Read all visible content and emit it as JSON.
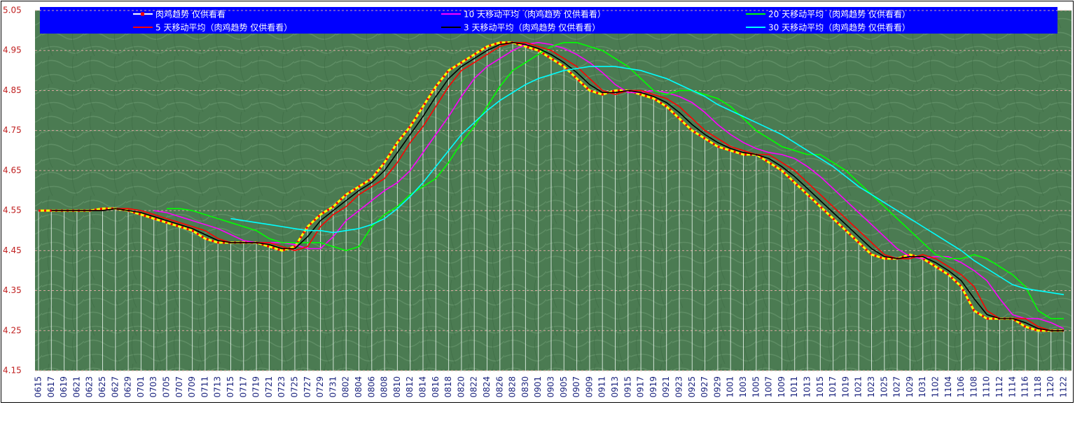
{
  "chart_data": {
    "type": "line",
    "categories": [
      "0615",
      "0617",
      "0619",
      "0621",
      "0623",
      "0625",
      "0627",
      "0629",
      "0701",
      "0703",
      "0705",
      "0707",
      "0709",
      "0711",
      "0713",
      "0715",
      "0717",
      "0719",
      "0721",
      "0723",
      "0725",
      "0727",
      "0729",
      "0731",
      "0802",
      "0804",
      "0806",
      "0808",
      "0810",
      "0812",
      "0814",
      "0816",
      "0818",
      "0820",
      "0822",
      "0824",
      "0826",
      "0828",
      "0830",
      "0901",
      "0903",
      "0905",
      "0907",
      "0909",
      "0911",
      "0913",
      "0915",
      "0917",
      "0919",
      "0921",
      "0923",
      "0925",
      "0927",
      "0929",
      "1001",
      "1003",
      "1005",
      "1007",
      "1009",
      "1011",
      "1013",
      "1015",
      "1017",
      "1019",
      "1021",
      "1023",
      "1025",
      "1027",
      "1029",
      "1031",
      "1102",
      "1104",
      "1106",
      "1108",
      "1110",
      "1112",
      "1114",
      "1116",
      "1118",
      "1120",
      "1122"
    ],
    "ylim": [
      4.15,
      5.05
    ],
    "yticks": [
      4.15,
      4.25,
      4.35,
      4.45,
      4.55,
      4.65,
      4.75,
      4.85,
      4.95,
      5.05
    ],
    "grid": true,
    "series": [
      {
        "name": "肉鸡趋势 仅供看看",
        "color": "#ffff00",
        "marker_color": "#ff0000",
        "drop_lines": true,
        "values": [
          4.55,
          4.55,
          4.55,
          4.55,
          4.55,
          4.555,
          4.555,
          4.55,
          4.54,
          4.53,
          4.52,
          4.51,
          4.5,
          4.48,
          4.47,
          4.47,
          4.47,
          4.47,
          4.46,
          4.45,
          4.46,
          4.51,
          4.54,
          4.56,
          4.59,
          4.61,
          4.63,
          4.67,
          4.72,
          4.76,
          4.81,
          4.86,
          4.9,
          4.92,
          4.94,
          4.96,
          4.97,
          4.97,
          4.96,
          4.95,
          4.93,
          4.91,
          4.88,
          4.85,
          4.84,
          4.85,
          4.85,
          4.84,
          4.83,
          4.81,
          4.78,
          4.75,
          4.73,
          4.71,
          4.7,
          4.69,
          4.69,
          4.67,
          4.65,
          4.62,
          4.59,
          4.56,
          4.53,
          4.5,
          4.47,
          4.44,
          4.43,
          4.43,
          4.44,
          4.43,
          4.41,
          4.39,
          4.36,
          4.3,
          4.28,
          4.28,
          4.28,
          4.26,
          4.25,
          4.25,
          4.25
        ]
      },
      {
        "name": "10 天移动平均（肉鸡趋势 仅供看看）",
        "color": "#ff00ff",
        "values": [
          null,
          null,
          null,
          null,
          null,
          null,
          null,
          null,
          null,
          4.55,
          4.545,
          4.535,
          4.525,
          4.515,
          4.505,
          4.49,
          4.475,
          4.47,
          4.47,
          4.47,
          4.465,
          4.455,
          4.455,
          4.485,
          4.525,
          4.55,
          4.575,
          4.6,
          4.62,
          4.65,
          4.695,
          4.74,
          4.785,
          4.835,
          4.88,
          4.91,
          4.93,
          4.95,
          4.965,
          4.97,
          4.965,
          4.955,
          4.94,
          4.92,
          4.895,
          4.865,
          4.845,
          4.845,
          4.85,
          4.845,
          4.835,
          4.82,
          4.795,
          4.765,
          4.74,
          4.72,
          4.705,
          4.695,
          4.69,
          4.68,
          4.66,
          4.635,
          4.605,
          4.575,
          4.545,
          4.515,
          4.485,
          4.455,
          4.435,
          4.43,
          4.435,
          4.435,
          4.42,
          4.4,
          4.375,
          4.33,
          4.29,
          4.28,
          4.28,
          4.27,
          4.255
        ]
      },
      {
        "name": "20 天移动平均（肉鸡趋势 仅供看看）",
        "color": "#00ff00",
        "values": [
          null,
          null,
          null,
          null,
          null,
          null,
          null,
          null,
          null,
          null,
          4.555,
          4.555,
          4.55,
          4.54,
          4.53,
          4.52,
          4.51,
          4.5,
          4.48,
          4.47,
          4.47,
          4.47,
          4.47,
          4.46,
          4.45,
          4.46,
          4.51,
          4.54,
          4.56,
          4.59,
          4.61,
          4.63,
          4.67,
          4.72,
          4.76,
          4.81,
          4.86,
          4.9,
          4.92,
          4.94,
          4.96,
          4.97,
          4.97,
          4.96,
          4.95,
          4.93,
          4.91,
          4.88,
          4.85,
          4.84,
          4.85,
          4.85,
          4.84,
          4.83,
          4.81,
          4.78,
          4.75,
          4.73,
          4.71,
          4.7,
          4.69,
          4.69,
          4.67,
          4.65,
          4.62,
          4.59,
          4.56,
          4.53,
          4.5,
          4.47,
          4.44,
          4.43,
          4.43,
          4.44,
          4.43,
          4.41,
          4.39,
          4.36,
          4.3,
          4.28,
          4.28
        ]
      },
      {
        "name": "5 天移动平均（肉鸡趋势 仅供看看）",
        "color": "#ff0000",
        "values": [
          null,
          4.55,
          4.55,
          4.55,
          4.55,
          4.55,
          4.555,
          4.555,
          4.55,
          4.54,
          4.53,
          4.52,
          4.51,
          4.5,
          4.48,
          4.47,
          4.47,
          4.47,
          4.47,
          4.46,
          4.45,
          4.46,
          4.51,
          4.54,
          4.56,
          4.59,
          4.61,
          4.63,
          4.67,
          4.72,
          4.76,
          4.81,
          4.86,
          4.9,
          4.92,
          4.94,
          4.96,
          4.97,
          4.97,
          4.96,
          4.95,
          4.93,
          4.91,
          4.88,
          4.85,
          4.84,
          4.85,
          4.85,
          4.84,
          4.83,
          4.81,
          4.78,
          4.75,
          4.73,
          4.71,
          4.7,
          4.69,
          4.69,
          4.67,
          4.65,
          4.62,
          4.59,
          4.56,
          4.53,
          4.5,
          4.47,
          4.44,
          4.43,
          4.43,
          4.44,
          4.43,
          4.41,
          4.39,
          4.36,
          4.3,
          4.28,
          4.28,
          4.28,
          4.26,
          4.25,
          4.25
        ]
      },
      {
        "name": "3 天移动平均（肉鸡趋势 仅供看看）",
        "color": "#000000",
        "values": [
          null,
          4.55,
          4.55,
          4.55,
          4.55,
          4.55,
          4.555,
          4.55,
          4.545,
          4.535,
          4.525,
          4.515,
          4.505,
          4.49,
          4.475,
          4.47,
          4.47,
          4.47,
          4.465,
          4.455,
          4.455,
          4.485,
          4.525,
          4.55,
          4.575,
          4.6,
          4.62,
          4.65,
          4.695,
          4.74,
          4.785,
          4.835,
          4.88,
          4.91,
          4.93,
          4.95,
          4.965,
          4.97,
          4.965,
          4.955,
          4.94,
          4.92,
          4.895,
          4.865,
          4.845,
          4.845,
          4.85,
          4.845,
          4.835,
          4.82,
          4.795,
          4.765,
          4.74,
          4.72,
          4.705,
          4.695,
          4.69,
          4.68,
          4.66,
          4.635,
          4.605,
          4.575,
          4.545,
          4.515,
          4.485,
          4.455,
          4.435,
          4.43,
          4.435,
          4.435,
          4.42,
          4.4,
          4.375,
          4.33,
          4.29,
          4.28,
          4.28,
          4.27,
          4.255,
          4.25,
          4.25
        ]
      },
      {
        "name": "30 天移动平均（肉鸡趋势 仅供看看）",
        "color": "#00ffff",
        "values": [
          null,
          null,
          null,
          null,
          null,
          null,
          null,
          null,
          null,
          null,
          null,
          null,
          null,
          null,
          null,
          4.53,
          4.525,
          4.52,
          4.515,
          4.51,
          4.505,
          4.5,
          4.5,
          4.495,
          4.5,
          4.505,
          4.515,
          4.53,
          4.555,
          4.585,
          4.62,
          4.66,
          4.7,
          4.74,
          4.77,
          4.8,
          4.825,
          4.845,
          4.865,
          4.88,
          4.89,
          4.9,
          4.905,
          4.91,
          4.91,
          4.91,
          4.905,
          4.9,
          4.89,
          4.88,
          4.865,
          4.85,
          4.835,
          4.815,
          4.8,
          4.785,
          4.77,
          4.755,
          4.74,
          4.72,
          4.7,
          4.68,
          4.66,
          4.635,
          4.61,
          4.59,
          4.57,
          4.55,
          4.53,
          4.51,
          4.49,
          4.47,
          4.45,
          4.425,
          4.405,
          4.385,
          4.365,
          4.355,
          4.35,
          4.345,
          4.34
        ]
      }
    ]
  }
}
